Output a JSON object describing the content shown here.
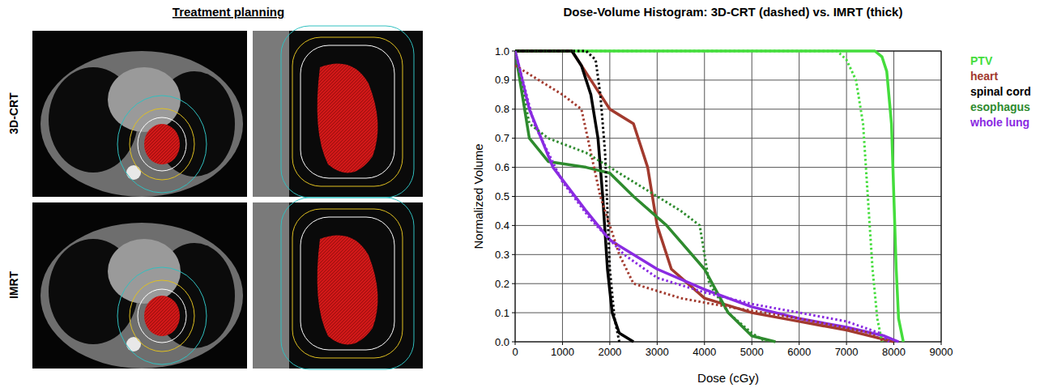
{
  "treatment_planning": {
    "title": "Treatment planning",
    "rows": [
      "3D-CRT",
      "IMRT"
    ]
  },
  "chart_data": {
    "type": "line",
    "title": "Dose-Volume Histogram: 3D-CRT (dashed) vs. IMRT (thick)",
    "x_label": "Dose (cGy)",
    "y_label": "Normalized Volume",
    "xlim": [
      0,
      9000
    ],
    "xticks": [
      0,
      1000,
      2000,
      3000,
      4000,
      5000,
      6000,
      7000,
      8000,
      9000
    ],
    "ylim": [
      0,
      1
    ],
    "yticks": [
      {
        "value": 0,
        "label": "0.0"
      },
      0.1,
      0.2,
      0.3,
      0.4,
      0.5,
      0.6,
      0.7,
      0.8,
      0.9,
      {
        "value": 1,
        "label": "1.0"
      }
    ],
    "grid": true,
    "legend": "right",
    "series": [
      {
        "name": "PTV",
        "color": "#44dd3c",
        "line_style": "solid",
        "x": [
          0,
          7600,
          7750,
          7850,
          7950,
          8000,
          8050,
          8100,
          8200
        ],
        "values": [
          1,
          1,
          0.98,
          0.93,
          0.75,
          0.5,
          0.25,
          0.08,
          0
        ]
      },
      {
        "name": "heart",
        "color": "#a23a2e",
        "line_style": "solid",
        "x": [
          0,
          1200,
          1600,
          2000,
          2500,
          2800,
          3000,
          3300,
          4000,
          5000,
          6000,
          7000,
          8000
        ],
        "values": [
          1,
          1,
          0.9,
          0.8,
          0.75,
          0.6,
          0.4,
          0.25,
          0.15,
          0.1,
          0.07,
          0.04,
          0
        ]
      },
      {
        "name": "spinal cord",
        "color": "#000000",
        "line_style": "solid",
        "x": [
          0,
          1200,
          1400,
          1600,
          1750,
          1850,
          1950,
          2050,
          2200,
          2500
        ],
        "values": [
          1,
          1,
          0.95,
          0.85,
          0.7,
          0.5,
          0.25,
          0.1,
          0.03,
          0
        ]
      },
      {
        "name": "esophagus",
        "color": "#2e8b2e",
        "line_style": "solid",
        "x": [
          0,
          300,
          700,
          1500,
          2000,
          2500,
          3200,
          4000,
          4500,
          5000,
          5500
        ],
        "values": [
          1,
          0.7,
          0.62,
          0.6,
          0.58,
          0.5,
          0.4,
          0.25,
          0.1,
          0.02,
          0
        ]
      },
      {
        "name": "whole lung",
        "color": "#8a2be2",
        "line_style": "solid",
        "x": [
          0,
          300,
          800,
          1500,
          2000,
          3000,
          4000,
          5000,
          6000,
          7000,
          7800,
          8100
        ],
        "values": [
          1,
          0.8,
          0.6,
          0.45,
          0.35,
          0.25,
          0.18,
          0.12,
          0.08,
          0.05,
          0.02,
          0
        ]
      },
      {
        "color": "#44dd3c",
        "line_style": "dotted",
        "x": [
          0,
          6800,
          7000,
          7200,
          7350,
          7450,
          7550,
          7650,
          7750
        ],
        "values": [
          1,
          1,
          0.97,
          0.9,
          0.75,
          0.5,
          0.25,
          0.08,
          0
        ]
      },
      {
        "color": "#a23a2e",
        "line_style": "dotted",
        "x": [
          0,
          500,
          1000,
          1400,
          1800,
          2200,
          2500,
          3500,
          4500,
          6000,
          7500,
          7800
        ],
        "values": [
          0.95,
          0.9,
          0.85,
          0.8,
          0.5,
          0.3,
          0.2,
          0.15,
          0.12,
          0.08,
          0.03,
          0
        ]
      },
      {
        "color": "#000000",
        "line_style": "dotted",
        "x": [
          0,
          1500,
          1700,
          1800,
          1900,
          1950,
          2000,
          2100,
          2200
        ],
        "values": [
          1,
          1,
          0.97,
          0.85,
          0.65,
          0.45,
          0.25,
          0.08,
          0
        ]
      },
      {
        "color": "#2e8b2e",
        "line_style": "dotted",
        "x": [
          0,
          300,
          700,
          1500,
          2500,
          3500,
          3900,
          4100,
          4500,
          5000,
          5300
        ],
        "values": [
          1,
          0.75,
          0.7,
          0.65,
          0.55,
          0.45,
          0.4,
          0.2,
          0.1,
          0.03,
          0
        ]
      },
      {
        "color": "#8a2be2",
        "line_style": "dotted",
        "x": [
          0,
          400,
          1000,
          1600,
          2300,
          3000,
          4000,
          5000,
          6000,
          7000,
          7700,
          7900
        ],
        "values": [
          1,
          0.75,
          0.55,
          0.42,
          0.3,
          0.22,
          0.17,
          0.13,
          0.1,
          0.07,
          0.03,
          0
        ]
      }
    ]
  }
}
